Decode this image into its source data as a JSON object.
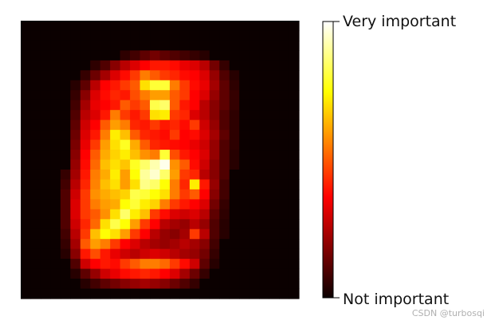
{
  "chart_data": {
    "type": "heatmap",
    "colormap": "hot",
    "grid_size": [
      28,
      28
    ],
    "axes": "off",
    "colorbar": {
      "orientation": "vertical",
      "placement": "right",
      "top_label": "Very important",
      "bottom_label": "Not important"
    },
    "values": [
      [
        0,
        0,
        0,
        0,
        0,
        0,
        0,
        0,
        0,
        0,
        0,
        0,
        0,
        0,
        0,
        0,
        0,
        0,
        0,
        0,
        0,
        0,
        0,
        0,
        0,
        0,
        0,
        0
      ],
      [
        0,
        0,
        0,
        0,
        0,
        0,
        0,
        0,
        0,
        0,
        0,
        0,
        0,
        0,
        0,
        0,
        0,
        0,
        0,
        0,
        0,
        0,
        0,
        0,
        0,
        0,
        0,
        0
      ],
      [
        0,
        0,
        0,
        0,
        0,
        0,
        0,
        0,
        0,
        0,
        0,
        0,
        0,
        0,
        0,
        0,
        0,
        0,
        0,
        0,
        0,
        0,
        0,
        0,
        0,
        0,
        0,
        0
      ],
      [
        0,
        0,
        0,
        0,
        0,
        0,
        0,
        0,
        0,
        0,
        0.05,
        0.08,
        0.12,
        0.15,
        0.12,
        0.1,
        0.08,
        0.06,
        0.04,
        0,
        0,
        0,
        0,
        0,
        0,
        0,
        0,
        0
      ],
      [
        0,
        0,
        0,
        0,
        0,
        0,
        0,
        0.05,
        0.1,
        0.18,
        0.25,
        0.3,
        0.35,
        0.4,
        0.4,
        0.38,
        0.32,
        0.3,
        0.25,
        0.15,
        0.06,
        0,
        0,
        0,
        0,
        0,
        0,
        0
      ],
      [
        0,
        0,
        0,
        0,
        0,
        0,
        0.06,
        0.14,
        0.22,
        0.3,
        0.38,
        0.45,
        0.55,
        0.5,
        0.45,
        0.42,
        0.38,
        0.35,
        0.3,
        0.2,
        0.1,
        0.04,
        0,
        0,
        0,
        0,
        0,
        0
      ],
      [
        0,
        0,
        0,
        0,
        0,
        0.04,
        0.12,
        0.25,
        0.35,
        0.4,
        0.45,
        0.5,
        0.7,
        0.8,
        0.8,
        0.55,
        0.45,
        0.38,
        0.32,
        0.22,
        0.12,
        0.05,
        0,
        0,
        0,
        0,
        0,
        0
      ],
      [
        0,
        0,
        0,
        0,
        0,
        0.06,
        0.18,
        0.3,
        0.38,
        0.42,
        0.4,
        0.48,
        0.55,
        0.6,
        0.6,
        0.5,
        0.45,
        0.35,
        0.3,
        0.2,
        0.12,
        0.06,
        0,
        0,
        0,
        0,
        0,
        0
      ],
      [
        0,
        0,
        0,
        0,
        0,
        0.08,
        0.22,
        0.32,
        0.35,
        0.4,
        0.5,
        0.45,
        0.5,
        0.82,
        0.85,
        0.5,
        0.4,
        0.35,
        0.25,
        0.18,
        0.12,
        0.06,
        0,
        0,
        0,
        0,
        0,
        0
      ],
      [
        0,
        0,
        0,
        0,
        0,
        0.1,
        0.25,
        0.3,
        0.4,
        0.55,
        0.45,
        0.4,
        0.45,
        0.7,
        0.72,
        0.45,
        0.42,
        0.3,
        0.25,
        0.18,
        0.1,
        0.05,
        0,
        0,
        0,
        0,
        0,
        0
      ],
      [
        0,
        0,
        0,
        0,
        0,
        0.12,
        0.28,
        0.35,
        0.5,
        0.6,
        0.55,
        0.42,
        0.4,
        0.45,
        0.4,
        0.42,
        0.38,
        0.45,
        0.28,
        0.2,
        0.1,
        0.05,
        0,
        0,
        0,
        0,
        0,
        0
      ],
      [
        0,
        0,
        0,
        0,
        0,
        0.14,
        0.3,
        0.4,
        0.55,
        0.72,
        0.65,
        0.5,
        0.42,
        0.4,
        0.38,
        0.45,
        0.35,
        0.38,
        0.3,
        0.22,
        0.12,
        0.05,
        0,
        0,
        0,
        0,
        0,
        0
      ],
      [
        0,
        0,
        0,
        0,
        0,
        0.16,
        0.32,
        0.45,
        0.6,
        0.7,
        0.78,
        0.62,
        0.5,
        0.42,
        0.4,
        0.38,
        0.35,
        0.32,
        0.28,
        0.2,
        0.1,
        0.05,
        0,
        0,
        0,
        0,
        0,
        0
      ],
      [
        0,
        0,
        0,
        0,
        0,
        0.18,
        0.35,
        0.5,
        0.62,
        0.68,
        0.72,
        0.65,
        0.58,
        0.55,
        0.8,
        0.48,
        0.4,
        0.35,
        0.3,
        0.2,
        0.1,
        0.04,
        0,
        0,
        0,
        0,
        0,
        0
      ],
      [
        0,
        0,
        0,
        0,
        0,
        0.2,
        0.38,
        0.52,
        0.65,
        0.7,
        0.66,
        0.78,
        0.85,
        0.92,
        0.98,
        0.58,
        0.5,
        0.38,
        0.28,
        0.18,
        0.1,
        0.04,
        0,
        0,
        0,
        0,
        0,
        0
      ],
      [
        0,
        0,
        0,
        0,
        0.06,
        0.22,
        0.4,
        0.55,
        0.62,
        0.72,
        0.6,
        0.75,
        0.9,
        0.95,
        0.85,
        0.6,
        0.45,
        0.42,
        0.25,
        0.18,
        0.1,
        0,
        0,
        0,
        0,
        0,
        0,
        0
      ],
      [
        0,
        0,
        0,
        0,
        0.08,
        0.25,
        0.42,
        0.56,
        0.65,
        0.7,
        0.6,
        0.7,
        0.88,
        0.85,
        0.75,
        0.55,
        0.42,
        0.72,
        0.4,
        0.2,
        0.08,
        0,
        0,
        0,
        0,
        0,
        0,
        0
      ],
      [
        0,
        0,
        0,
        0,
        0.1,
        0.28,
        0.45,
        0.58,
        0.62,
        0.65,
        0.68,
        0.82,
        0.8,
        0.75,
        0.7,
        0.55,
        0.45,
        0.5,
        0.35,
        0.18,
        0.08,
        0,
        0,
        0,
        0,
        0,
        0,
        0
      ],
      [
        0,
        0,
        0,
        0,
        0.1,
        0.3,
        0.45,
        0.55,
        0.6,
        0.62,
        0.75,
        0.8,
        0.72,
        0.68,
        0.55,
        0.45,
        0.4,
        0.35,
        0.3,
        0.15,
        0.06,
        0,
        0,
        0,
        0,
        0,
        0,
        0
      ],
      [
        0,
        0,
        0,
        0,
        0.1,
        0.3,
        0.45,
        0.5,
        0.58,
        0.7,
        0.85,
        0.72,
        0.65,
        0.45,
        0.38,
        0.3,
        0.28,
        0.3,
        0.25,
        0.12,
        0.05,
        0,
        0,
        0,
        0,
        0,
        0,
        0
      ],
      [
        0,
        0,
        0,
        0,
        0.1,
        0.28,
        0.42,
        0.52,
        0.7,
        0.82,
        0.75,
        0.6,
        0.45,
        0.35,
        0.25,
        0.22,
        0.2,
        0.25,
        0.2,
        0.1,
        0.04,
        0,
        0,
        0,
        0,
        0,
        0,
        0
      ],
      [
        0,
        0,
        0,
        0,
        0.08,
        0.25,
        0.45,
        0.65,
        0.75,
        0.7,
        0.6,
        0.45,
        0.35,
        0.25,
        0.2,
        0.18,
        0.22,
        0.45,
        0.25,
        0.1,
        0.04,
        0,
        0,
        0,
        0,
        0,
        0,
        0
      ],
      [
        0,
        0,
        0,
        0,
        0.06,
        0.22,
        0.5,
        0.6,
        0.55,
        0.45,
        0.35,
        0.3,
        0.25,
        0.22,
        0.2,
        0.22,
        0.25,
        0.22,
        0.18,
        0.08,
        0,
        0,
        0,
        0,
        0,
        0,
        0,
        0
      ],
      [
        0,
        0,
        0,
        0,
        0.04,
        0.18,
        0.4,
        0.48,
        0.4,
        0.32,
        0.28,
        0.25,
        0.28,
        0.3,
        0.28,
        0.25,
        0.22,
        0.2,
        0.15,
        0.06,
        0,
        0,
        0,
        0,
        0,
        0,
        0,
        0
      ],
      [
        0,
        0,
        0,
        0,
        0,
        0.1,
        0.28,
        0.35,
        0.4,
        0.38,
        0.45,
        0.5,
        0.55,
        0.55,
        0.52,
        0.45,
        0.38,
        0.28,
        0.12,
        0.04,
        0,
        0,
        0,
        0,
        0,
        0,
        0,
        0
      ],
      [
        0,
        0,
        0,
        0,
        0,
        0.04,
        0.12,
        0.2,
        0.28,
        0.32,
        0.38,
        0.4,
        0.42,
        0.4,
        0.36,
        0.3,
        0.22,
        0.14,
        0.06,
        0,
        0,
        0,
        0,
        0,
        0,
        0,
        0,
        0
      ],
      [
        0,
        0,
        0,
        0,
        0,
        0,
        0.04,
        0.08,
        0.12,
        0.15,
        0.18,
        0.2,
        0.22,
        0.2,
        0.18,
        0.14,
        0.1,
        0.06,
        0,
        0,
        0,
        0,
        0,
        0,
        0,
        0,
        0,
        0
      ],
      [
        0,
        0,
        0,
        0,
        0,
        0,
        0,
        0,
        0,
        0,
        0,
        0,
        0,
        0,
        0,
        0,
        0,
        0,
        0,
        0,
        0,
        0,
        0,
        0,
        0,
        0,
        0,
        0
      ]
    ]
  },
  "watermark": "CSDN @turbosqi"
}
